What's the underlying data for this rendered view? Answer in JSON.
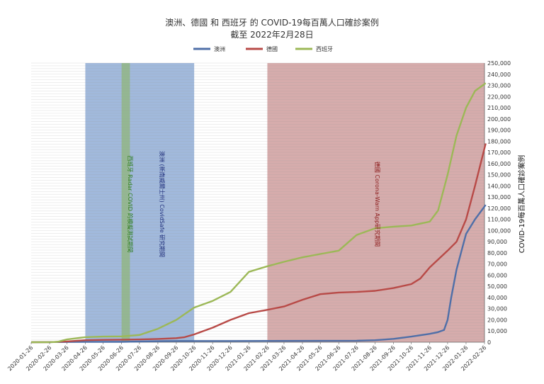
{
  "chart_data": {
    "type": "line",
    "title": "澳洲、德國 和 西班牙 的 COVID-19每百萬人口確診案例",
    "subtitle": "截至 2022年2月28日",
    "xlabel": "",
    "ylabel": "COVID-19每百萬人口確診案例",
    "ylim": [
      0,
      250000
    ],
    "y_ticks": [
      "0",
      "10,000",
      "20,000",
      "30,000",
      "40,000",
      "50,000",
      "60,000",
      "70,000",
      "80,000",
      "90,000",
      "100,000",
      "110,000",
      "120,000",
      "130,000",
      "140,000",
      "150,000",
      "160,000",
      "170,000",
      "180,000",
      "190,000",
      "200,000",
      "210,000",
      "220,000",
      "230,000",
      "240,000",
      "250,000"
    ],
    "x_ticks": [
      "2020-01-26",
      "2020-02-26",
      "2020-03-26",
      "2020-04-26",
      "2020-05-26",
      "2020-06-26",
      "2020-07-26",
      "2020-08-26",
      "2020-09-26",
      "2020-10-26",
      "2020-11-26",
      "2020-12-26",
      "2021-01-26",
      "2021-02-26",
      "2021-03-26",
      "2021-04-26",
      "2021-05-26",
      "2021-06-26",
      "2021-07-26",
      "2021-08-26",
      "2021-09-26",
      "2021-10-26",
      "2021-11-26",
      "2021-12-26",
      "2022-01-26",
      "2022-02-26"
    ],
    "grid": true,
    "legend_position": "top-center",
    "series": [
      {
        "name": "澳洲",
        "color": "#4f6fa8",
        "x": [
          "2020-01-26",
          "2020-03-26",
          "2020-04-26",
          "2020-06-26",
          "2020-07-26",
          "2020-09-10",
          "2020-10-26",
          "2020-12-26",
          "2021-02-26",
          "2021-05-26",
          "2021-07-26",
          "2021-08-26",
          "2021-09-26",
          "2021-10-26",
          "2021-11-26",
          "2021-12-10",
          "2021-12-20",
          "2021-12-26",
          "2022-01-01",
          "2022-01-10",
          "2022-01-20",
          "2022-01-26",
          "2022-02-10",
          "2022-02-28"
        ],
        "values": [
          0,
          200,
          260,
          300,
          600,
          1000,
          1050,
          1100,
          1150,
          1200,
          1350,
          1800,
          3000,
          5000,
          7500,
          9000,
          11000,
          20000,
          40000,
          65000,
          85000,
          97000,
          110000,
          123000
        ]
      },
      {
        "name": "德國",
        "color": "#b84a47",
        "x": [
          "2020-01-26",
          "2020-02-26",
          "2020-03-26",
          "2020-04-26",
          "2020-05-26",
          "2020-06-26",
          "2020-07-26",
          "2020-08-26",
          "2020-09-26",
          "2020-10-10",
          "2020-10-26",
          "2020-11-26",
          "2020-12-26",
          "2021-01-26",
          "2021-02-26",
          "2021-03-26",
          "2021-04-26",
          "2021-05-26",
          "2021-06-26",
          "2021-07-26",
          "2021-08-26",
          "2021-09-26",
          "2021-10-26",
          "2021-11-10",
          "2021-11-26",
          "2021-12-26",
          "2022-01-10",
          "2022-01-26",
          "2022-02-10",
          "2022-02-28"
        ],
        "values": [
          0,
          50,
          700,
          1800,
          2100,
          2300,
          2500,
          2900,
          3600,
          4500,
          7000,
          13000,
          20000,
          26000,
          29000,
          32000,
          38000,
          43000,
          44500,
          45000,
          46000,
          48500,
          52000,
          57000,
          67000,
          82000,
          90000,
          110000,
          140000,
          178000
        ]
      },
      {
        "name": "西班牙",
        "color": "#9cb857",
        "x": [
          "2020-01-26",
          "2020-02-26",
          "2020-03-10",
          "2020-03-26",
          "2020-04-26",
          "2020-05-26",
          "2020-06-26",
          "2020-07-26",
          "2020-08-26",
          "2020-09-26",
          "2020-10-26",
          "2020-11-26",
          "2020-12-26",
          "2021-01-26",
          "2021-02-26",
          "2021-03-26",
          "2021-04-26",
          "2021-05-26",
          "2021-06-26",
          "2021-07-26",
          "2021-08-26",
          "2021-09-26",
          "2021-10-26",
          "2021-11-26",
          "2021-12-10",
          "2021-12-26",
          "2022-01-10",
          "2022-01-26",
          "2022-02-10",
          "2022-02-28"
        ],
        "values": [
          0,
          10,
          300,
          2500,
          4500,
          5000,
          5200,
          6500,
          12000,
          20000,
          31000,
          37000,
          45000,
          63000,
          68000,
          72000,
          76000,
          79000,
          82000,
          96000,
          102000,
          103500,
          104500,
          108000,
          118000,
          150000,
          185000,
          210000,
          225000,
          232000
        ]
      }
    ],
    "annotations": [
      {
        "start": "2020-04-26",
        "end": "2020-10-26",
        "color": "#6f93c9",
        "label": "澳洲 (新南威爾士州) CovidSafe 研究期間",
        "label_color": "#1e2d7a"
      },
      {
        "start": "2020-06-26",
        "end": "2020-07-10",
        "color": "#8db56a",
        "label": "西班牙 Radar COVID 的模擬測試期間",
        "label_color": "#2e7d1f"
      },
      {
        "start": "2021-02-26",
        "end": "2022-02-28",
        "color": "#c08080",
        "label": "德國 Corona-Warn App研究期間",
        "label_color": "#8b1a1a"
      }
    ]
  }
}
